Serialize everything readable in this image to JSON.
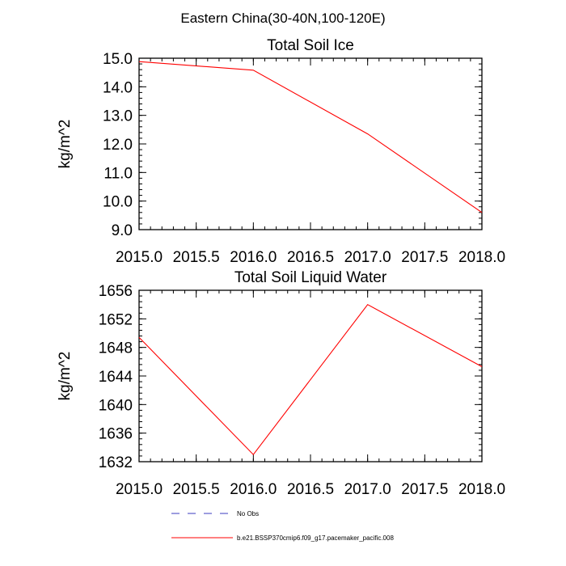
{
  "figure": {
    "suptitle": "Eastern China(30-40N,100-120E)",
    "line_color": "#ff0000",
    "obs_color": "#3b3bbf"
  },
  "chart_data": [
    {
      "type": "line",
      "title": "Total Soil Ice",
      "xlabel": "",
      "ylabel": "kg/m^2",
      "xlim": [
        2015.0,
        2018.0
      ],
      "ylim": [
        9.0,
        15.0
      ],
      "xticks": [
        "2015.0",
        "2015.5",
        "2016.0",
        "2016.5",
        "2017.0",
        "2017.5",
        "2018.0"
      ],
      "yticks": [
        "9.0",
        "10.0",
        "11.0",
        "12.0",
        "13.0",
        "14.0",
        "15.0"
      ],
      "grid": false,
      "series": [
        {
          "name": "b.e21.BSSP370cmip6.f09_g17.pacemaker_pacific.008",
          "x": [
            2015.0,
            2016.0,
            2017.0,
            2018.0
          ],
          "y": [
            14.88,
            14.58,
            12.35,
            9.6
          ]
        }
      ]
    },
    {
      "type": "line",
      "title": "Total Soil Liquid Water",
      "xlabel": "",
      "ylabel": "kg/m^2",
      "xlim": [
        2015.0,
        2018.0
      ],
      "ylim": [
        1632,
        1656
      ],
      "xticks": [
        "2015.0",
        "2015.5",
        "2016.0",
        "2016.5",
        "2017.0",
        "2017.5",
        "2018.0"
      ],
      "yticks": [
        "1632",
        "1636",
        "1640",
        "1644",
        "1648",
        "1652",
        "1656"
      ],
      "grid": false,
      "series": [
        {
          "name": "b.e21.BSSP370cmip6.f09_g17.pacemaker_pacific.008",
          "x": [
            2015.0,
            2016.0,
            2017.0,
            2018.0
          ],
          "y": [
            1649.4,
            1633.0,
            1654.0,
            1645.3
          ]
        }
      ]
    }
  ],
  "legend": {
    "placement": "bottom-center",
    "entries": [
      {
        "label": "No Obs",
        "style": "dashed",
        "color": "#3b3bbf"
      },
      {
        "label": "b.e21.BSSP370cmip6.f09_g17.pacemaker_pacific.008",
        "style": "solid",
        "color": "#ff0000"
      }
    ]
  }
}
